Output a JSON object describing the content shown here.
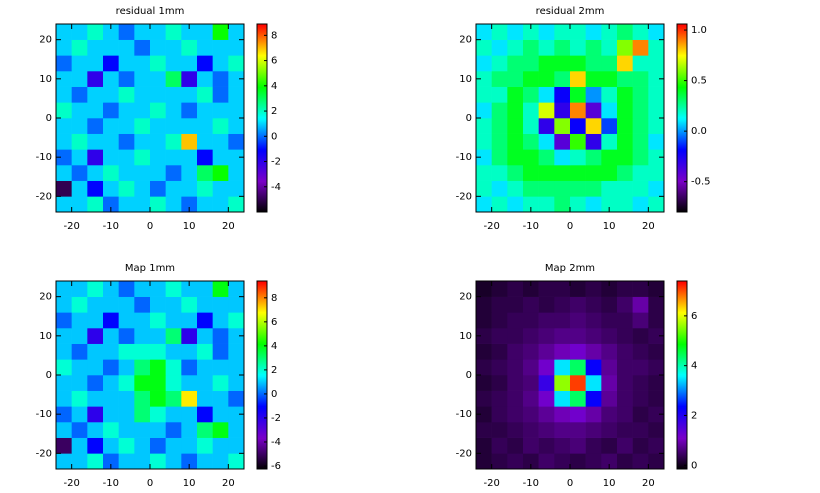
{
  "chart_data": [
    {
      "type": "heatmap",
      "title": "residual 1mm",
      "x": [
        -22,
        -18,
        -14,
        -10,
        -6,
        -2,
        2,
        6,
        10,
        14,
        18,
        22
      ],
      "y": [
        -22,
        -18,
        -14,
        -10,
        -6,
        -2,
        2,
        6,
        10,
        14,
        18,
        22
      ],
      "z": [
        [
          1,
          1,
          2,
          0,
          1,
          1,
          2,
          1,
          0,
          1,
          1,
          2
        ],
        [
          -5,
          1,
          -1,
          1,
          2,
          1,
          0,
          1,
          1,
          2,
          1,
          1
        ],
        [
          1,
          0,
          1,
          2,
          1,
          1,
          1,
          0,
          1,
          3,
          4,
          1
        ],
        [
          0,
          1,
          -2,
          1,
          1,
          2,
          1,
          1,
          1,
          -1,
          1,
          1
        ],
        [
          1,
          2,
          1,
          1,
          0,
          1,
          1,
          2,
          7,
          1,
          1,
          0
        ],
        [
          1,
          1,
          0,
          1,
          1,
          2,
          1,
          1,
          1,
          1,
          2,
          1
        ],
        [
          2,
          1,
          1,
          0,
          1,
          1,
          2,
          1,
          0,
          1,
          1,
          1
        ],
        [
          1,
          0,
          1,
          1,
          2,
          1,
          1,
          1,
          1,
          2,
          0,
          1
        ],
        [
          1,
          1,
          -2,
          1,
          0,
          1,
          1,
          3,
          -2,
          1,
          0,
          1
        ],
        [
          0,
          1,
          1,
          -1,
          1,
          1,
          2,
          1,
          1,
          -1,
          1,
          2
        ],
        [
          1,
          2,
          1,
          1,
          1,
          0,
          1,
          1,
          2,
          1,
          1,
          1
        ],
        [
          1,
          1,
          2,
          1,
          0,
          1,
          1,
          2,
          1,
          1,
          4,
          1
        ]
      ],
      "xlim": [
        -24,
        24
      ],
      "ylim": [
        -24,
        24
      ],
      "xticks": [
        -20,
        -10,
        0,
        10,
        20
      ],
      "yticks": [
        -20,
        -10,
        0,
        10,
        20
      ],
      "zlim": [
        -6,
        8.9
      ],
      "zticks": [
        -4,
        -2,
        0,
        2,
        4,
        6,
        8
      ],
      "colormap": [
        "#000000",
        "#7a00c8",
        "#0000ff",
        "#00ffff",
        "#00ff00",
        "#ffff00",
        "#ff0000"
      ]
    },
    {
      "type": "heatmap",
      "title": "residual 2mm",
      "x": [
        -22,
        -18,
        -14,
        -10,
        -6,
        -2,
        2,
        6,
        10,
        14,
        18,
        22
      ],
      "y": [
        -22,
        -18,
        -14,
        -10,
        -6,
        -2,
        2,
        6,
        10,
        14,
        18,
        22
      ],
      "z": [
        [
          0.1,
          0.2,
          0.1,
          0.2,
          0.2,
          0.3,
          0.2,
          0.1,
          0.2,
          0.2,
          0.1,
          0.2
        ],
        [
          0.2,
          0.1,
          0.2,
          0.3,
          0.3,
          0.3,
          0.3,
          0.3,
          0.2,
          0.2,
          0.2,
          0.1
        ],
        [
          0.2,
          0.2,
          0.3,
          0.4,
          0.4,
          0.4,
          0.4,
          0.4,
          0.4,
          0.3,
          0.2,
          0.2
        ],
        [
          0.1,
          0.3,
          0.4,
          0.4,
          0.3,
          0.1,
          0.2,
          0.3,
          0.4,
          0.4,
          0.3,
          0.2
        ],
        [
          0.2,
          0.3,
          0.4,
          0.3,
          0.1,
          -0.4,
          0.5,
          -0.3,
          0.2,
          0.4,
          0.3,
          0.1
        ],
        [
          0.2,
          0.3,
          0.4,
          0.2,
          -0.3,
          0.6,
          -0.2,
          0.8,
          -0.1,
          0.4,
          0.3,
          0.2
        ],
        [
          0.1,
          0.3,
          0.4,
          0.2,
          0.7,
          -0.3,
          0.9,
          -0.4,
          0.1,
          0.4,
          0.3,
          0.2
        ],
        [
          0.2,
          0.2,
          0.4,
          0.3,
          0.1,
          -0.2,
          0.4,
          0.0,
          0.2,
          0.4,
          0.3,
          0.2
        ],
        [
          0.2,
          0.3,
          0.3,
          0.4,
          0.4,
          0.3,
          0.8,
          0.4,
          0.4,
          0.3,
          0.3,
          0.2
        ],
        [
          0.1,
          0.2,
          0.3,
          0.3,
          0.4,
          0.4,
          0.4,
          0.3,
          0.3,
          0.8,
          0.2,
          0.2
        ],
        [
          0.2,
          0.1,
          0.2,
          0.3,
          0.2,
          0.3,
          0.2,
          0.3,
          0.2,
          0.6,
          0.9,
          0.2
        ],
        [
          0.1,
          0.2,
          0.1,
          0.2,
          0.1,
          0.2,
          0.2,
          0.1,
          0.2,
          0.3,
          0.2,
          0.1
        ]
      ],
      "xlim": [
        -24,
        24
      ],
      "ylim": [
        -24,
        24
      ],
      "xticks": [
        -20,
        -10,
        0,
        10,
        20
      ],
      "yticks": [
        -20,
        -10,
        0,
        10,
        20
      ],
      "zlim": [
        -0.8,
        1.06
      ],
      "zticks": [
        -0.5,
        {
          "value": 0,
          "label": "0.0"
        },
        0.5,
        {
          "value": 1,
          "label": "1.0"
        }
      ],
      "colormap": [
        "#000000",
        "#7a00c8",
        "#0000ff",
        "#00ffff",
        "#00ff00",
        "#ffff00",
        "#ff0000"
      ]
    },
    {
      "type": "heatmap",
      "title": "Map 1mm",
      "x": [
        -22,
        -18,
        -14,
        -10,
        -6,
        -2,
        2,
        6,
        10,
        14,
        18,
        22
      ],
      "y": [
        -22,
        -18,
        -14,
        -10,
        -6,
        -2,
        2,
        6,
        10,
        14,
        18,
        22
      ],
      "z": [
        [
          1,
          1,
          2,
          0,
          1,
          1,
          2,
          1,
          0,
          1,
          1,
          2
        ],
        [
          -5,
          1,
          -1,
          1,
          2,
          1,
          0,
          1,
          1,
          2,
          1,
          1
        ],
        [
          1,
          0,
          1,
          2,
          1,
          1,
          1,
          0,
          1,
          3,
          4,
          1
        ],
        [
          0,
          1,
          -2,
          1,
          1,
          3,
          2,
          1,
          1,
          -1,
          1,
          1
        ],
        [
          1,
          2,
          1,
          1,
          1,
          3,
          4,
          3,
          7,
          1,
          1,
          0
        ],
        [
          1,
          1,
          0,
          1,
          2,
          4,
          4,
          2,
          1,
          1,
          2,
          1
        ],
        [
          2,
          1,
          1,
          0,
          1,
          3,
          4,
          2,
          0,
          1,
          1,
          1
        ],
        [
          1,
          0,
          1,
          1,
          2,
          2,
          2,
          1,
          1,
          2,
          0,
          1
        ],
        [
          1,
          1,
          -2,
          1,
          0,
          1,
          1,
          3,
          -2,
          1,
          0,
          1
        ],
        [
          0,
          1,
          1,
          -1,
          1,
          1,
          2,
          1,
          1,
          -1,
          1,
          2
        ],
        [
          1,
          2,
          1,
          1,
          1,
          0,
          1,
          1,
          2,
          1,
          1,
          1
        ],
        [
          1,
          1,
          2,
          1,
          0,
          1,
          1,
          2,
          1,
          1,
          4,
          1
        ]
      ],
      "xlim": [
        -24,
        24
      ],
      "ylim": [
        -24,
        24
      ],
      "xticks": [
        -20,
        -10,
        0,
        10,
        20
      ],
      "yticks": [
        -20,
        -10,
        0,
        10,
        20
      ],
      "zlim": [
        -6.25,
        9.4
      ],
      "zticks": [
        -6,
        -4,
        -2,
        0,
        2,
        4,
        6,
        8
      ],
      "colormap": [
        "#000000",
        "#7a00c8",
        "#0000ff",
        "#00ffff",
        "#00ff00",
        "#ffff00",
        "#ff0000"
      ]
    },
    {
      "type": "heatmap",
      "title": "Map 2mm",
      "x": [
        -22,
        -18,
        -14,
        -10,
        -6,
        -2,
        2,
        6,
        10,
        14,
        18,
        22
      ],
      "y": [
        -22,
        -18,
        -14,
        -10,
        -6,
        -2,
        2,
        6,
        10,
        14,
        18,
        22
      ],
      "z": [
        [
          0.2,
          0.3,
          0.4,
          0.3,
          0.5,
          0.4,
          0.3,
          0.4,
          0.5,
          0.3,
          0.4,
          0.3
        ],
        [
          0.2,
          0.4,
          0.3,
          0.5,
          0.4,
          0.5,
          0.6,
          0.4,
          0.3,
          0.5,
          0.3,
          0.4
        ],
        [
          0.3,
          0.3,
          0.4,
          0.5,
          0.6,
          0.7,
          0.7,
          0.6,
          0.5,
          0.4,
          0.4,
          0.3
        ],
        [
          0.2,
          0.4,
          0.5,
          0.6,
          0.8,
          1.0,
          1.2,
          0.9,
          0.6,
          0.5,
          0.3,
          0.4
        ],
        [
          0.3,
          0.4,
          0.5,
          0.7,
          1.2,
          3.5,
          4.4,
          2.3,
          0.8,
          0.5,
          0.4,
          0.3
        ],
        [
          0.2,
          0.3,
          0.5,
          0.6,
          1.8,
          5.6,
          7.1,
          3.5,
          0.9,
          0.5,
          0.4,
          0.3
        ],
        [
          0.3,
          0.4,
          0.5,
          0.7,
          1.2,
          3.5,
          4.4,
          2.3,
          0.8,
          0.5,
          0.5,
          0.4
        ],
        [
          0.2,
          0.3,
          0.5,
          0.6,
          0.8,
          1.0,
          1.2,
          0.9,
          0.7,
          0.5,
          0.4,
          0.3
        ],
        [
          0.3,
          0.4,
          0.4,
          0.5,
          0.6,
          0.7,
          0.7,
          0.6,
          0.5,
          0.4,
          0.3,
          0.4
        ],
        [
          0.2,
          0.3,
          0.4,
          0.4,
          0.5,
          0.5,
          0.6,
          0.5,
          0.4,
          0.4,
          0.6,
          0.3
        ],
        [
          0.2,
          0.3,
          0.3,
          0.4,
          0.3,
          0.4,
          0.5,
          0.4,
          0.3,
          0.5,
          0.9,
          0.3
        ],
        [
          0.1,
          0.2,
          0.3,
          0.2,
          0.3,
          0.3,
          0.2,
          0.3,
          0.2,
          0.3,
          0.3,
          0.2
        ]
      ],
      "xlim": [
        -24,
        24
      ],
      "ylim": [
        -24,
        24
      ],
      "xticks": [
        -20,
        -10,
        0,
        10,
        20
      ],
      "yticks": [
        -20,
        -10,
        0,
        10,
        20
      ],
      "zlim": [
        -0.15,
        7.4
      ],
      "zticks": [
        0,
        2,
        4,
        6
      ],
      "colormap": [
        "#000000",
        "#7a00c8",
        "#0000ff",
        "#00ffff",
        "#00ff00",
        "#ffff00",
        "#ff0000"
      ]
    }
  ]
}
